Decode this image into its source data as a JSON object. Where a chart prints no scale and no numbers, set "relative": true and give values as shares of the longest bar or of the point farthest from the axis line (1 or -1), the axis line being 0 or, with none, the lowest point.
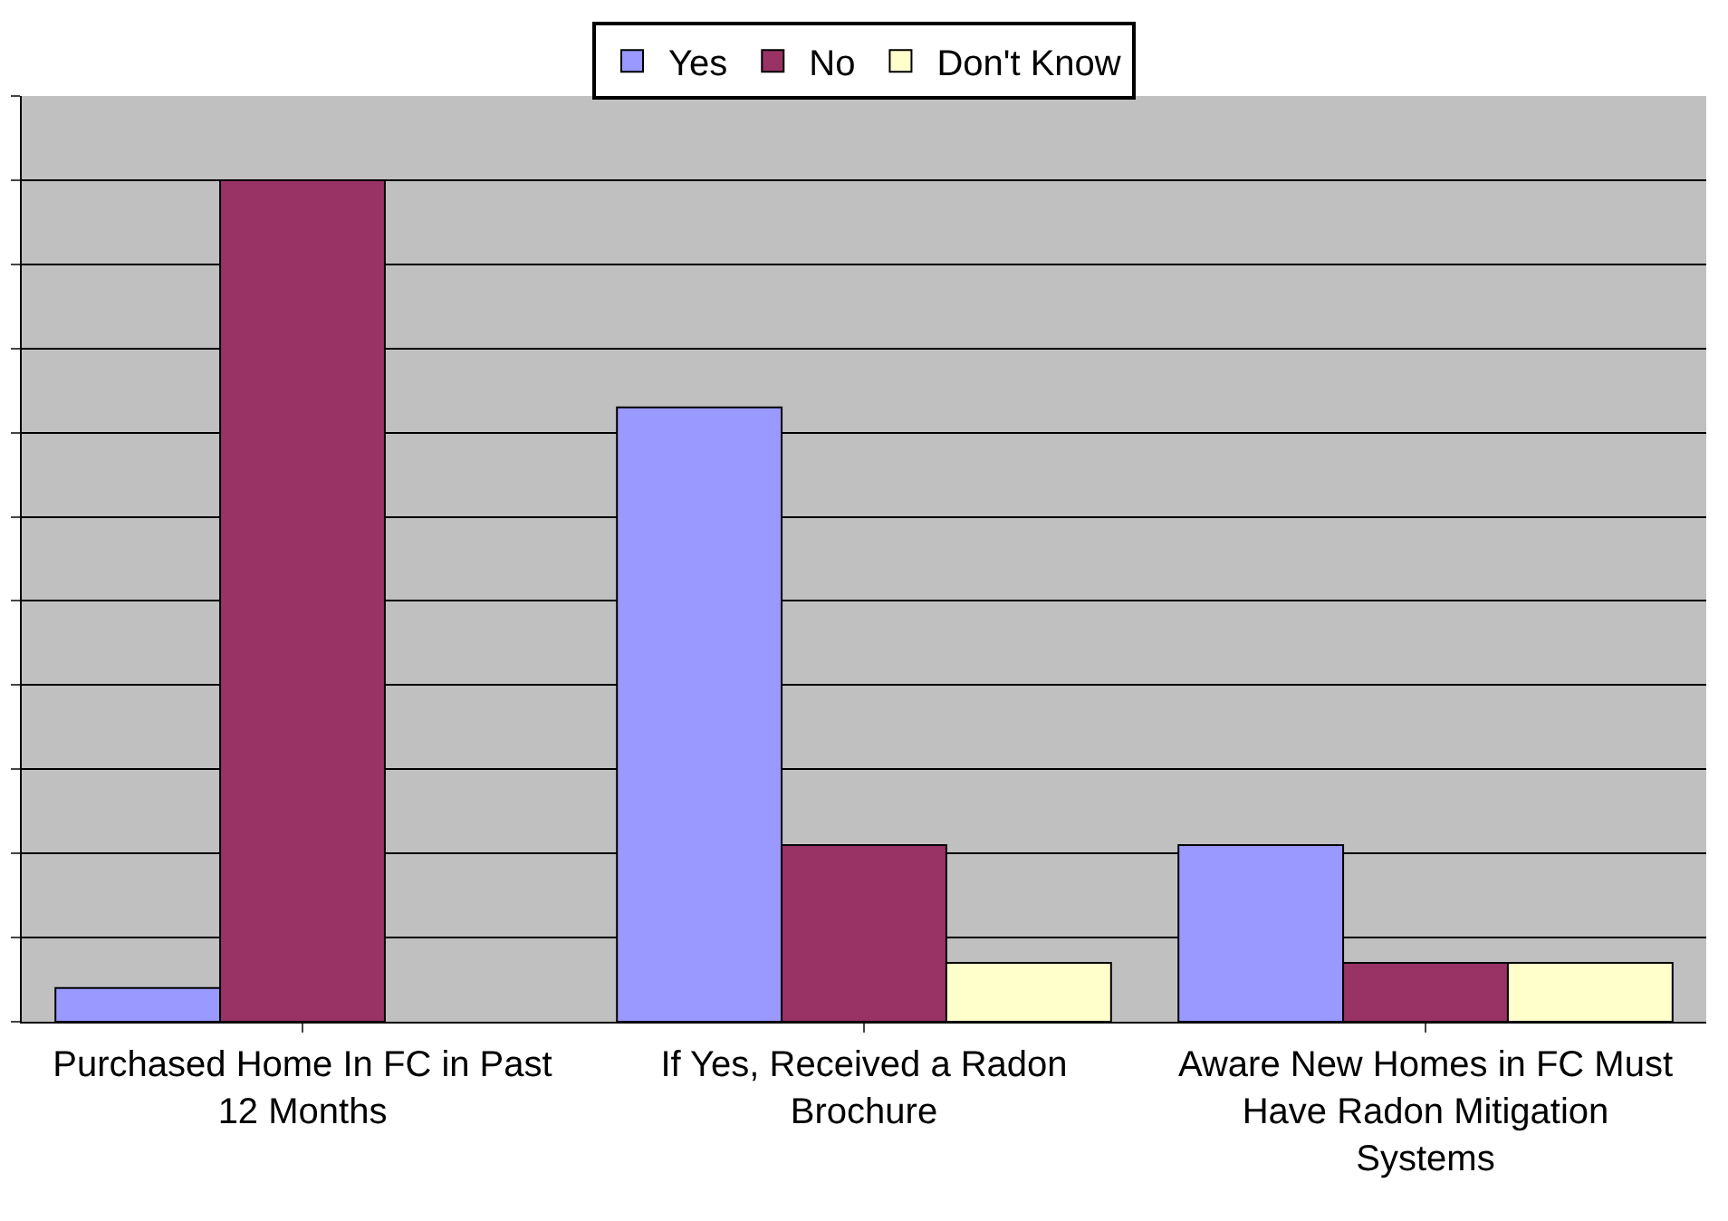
{
  "chart_data": {
    "type": "bar",
    "relative": true,
    "grid": "y",
    "legend": "top",
    "categories": [
      "Purchased Home In FC in Past 12 Months",
      "If Yes, Received a Radon Brochure",
      "Aware New Homes in FC Must Have Radon Mitigation Systems"
    ],
    "series": [
      {
        "name": "Yes",
        "color": "#9999ff",
        "values": [
          0.04,
          0.73,
          0.21
        ]
      },
      {
        "name": "No",
        "color": "#993366",
        "values": [
          1,
          0.21,
          0.07
        ]
      },
      {
        "name": "Don't Know",
        "color": "#ffffcc",
        "values": [
          null,
          0.07,
          0.07
        ]
      }
    ]
  }
}
